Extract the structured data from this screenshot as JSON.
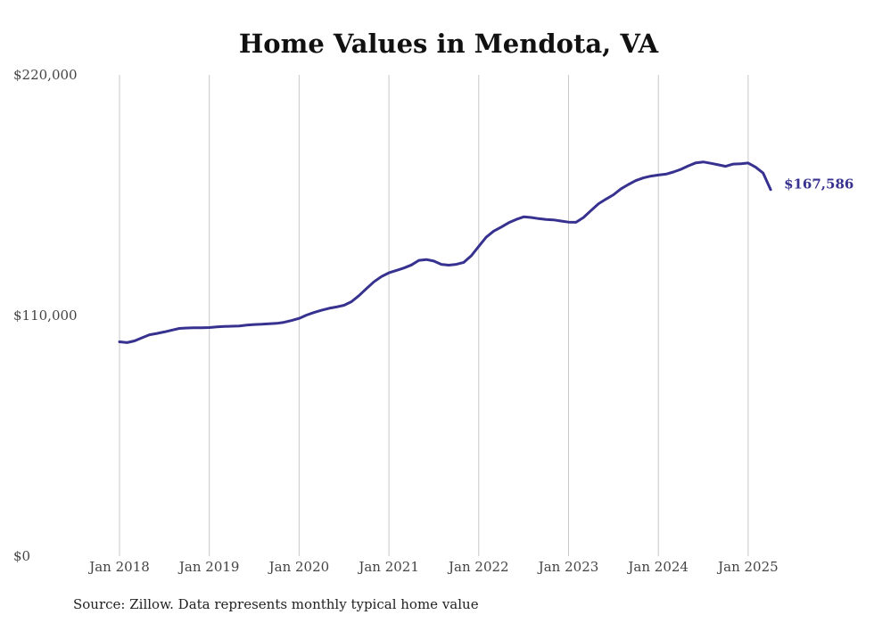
{
  "chart_data": {
    "type": "line",
    "title": "Home Values in Mendota, VA",
    "xlabel": "",
    "ylabel": "",
    "source_note": "Source: Zillow. Data represents monthly typical home value",
    "ylim": [
      0,
      220000
    ],
    "y_ticks": [
      "$220,000",
      "$110,000",
      "$0"
    ],
    "y_tick_values": [
      220000,
      110000,
      0
    ],
    "x_ticks": [
      "Jan 2018",
      "Jan 2019",
      "Jan 2020",
      "Jan 2021",
      "Jan 2022",
      "Jan 2023",
      "Jan 2024",
      "Jan 2025"
    ],
    "x_tick_values": [
      "2018-01",
      "2019-01",
      "2020-01",
      "2021-01",
      "2022-01",
      "2023-01",
      "2024-01",
      "2025-01"
    ],
    "grid": "vertical",
    "line_color": "#37318f",
    "end_label": "$167,586",
    "series": [
      {
        "x": [
          "2018-01",
          "2018-02",
          "2018-03",
          "2018-04",
          "2018-05",
          "2018-06",
          "2018-07",
          "2018-08",
          "2018-09",
          "2018-10",
          "2018-11",
          "2018-12",
          "2019-01",
          "2019-02",
          "2019-03",
          "2019-04",
          "2019-05",
          "2019-06",
          "2019-07",
          "2019-08",
          "2019-09",
          "2019-10",
          "2019-11",
          "2019-12",
          "2020-01",
          "2020-02",
          "2020-03",
          "2020-04",
          "2020-05",
          "2020-06",
          "2020-07",
          "2020-08",
          "2020-09",
          "2020-10",
          "2020-11",
          "2020-12",
          "2021-01",
          "2021-02",
          "2021-03",
          "2021-04",
          "2021-05",
          "2021-06",
          "2021-07",
          "2021-08",
          "2021-09",
          "2021-10",
          "2021-11",
          "2021-12",
          "2022-01",
          "2022-02",
          "2022-03",
          "2022-04",
          "2022-05",
          "2022-06",
          "2022-07",
          "2022-08",
          "2022-09",
          "2022-10",
          "2022-11",
          "2022-12",
          "2023-01",
          "2023-02",
          "2023-03",
          "2023-04",
          "2023-05",
          "2023-06",
          "2023-07",
          "2023-08",
          "2023-09",
          "2023-10",
          "2023-11",
          "2023-12",
          "2024-01",
          "2024-02",
          "2024-03",
          "2024-04",
          "2024-05",
          "2024-06",
          "2024-07",
          "2024-08",
          "2024-09",
          "2024-10",
          "2024-11",
          "2024-12",
          "2025-01",
          "2025-02",
          "2025-03",
          "2025-04"
        ],
        "values": [
          98000,
          97600,
          98400,
          99800,
          101200,
          101800,
          102500,
          103300,
          104100,
          104300,
          104400,
          104400,
          104500,
          104800,
          105000,
          105100,
          105200,
          105600,
          105900,
          106000,
          106200,
          106400,
          106900,
          107700,
          108700,
          110200,
          111400,
          112400,
          113300,
          113900,
          114700,
          116300,
          119100,
          122300,
          125400,
          127800,
          129500,
          130600,
          131700,
          133100,
          135200,
          135600,
          134900,
          133400,
          133000,
          133400,
          134300,
          137300,
          141600,
          145800,
          148600,
          150400,
          152400,
          153900,
          155100,
          154800,
          154300,
          153900,
          153700,
          153200,
          152700,
          152600,
          154800,
          158000,
          161100,
          163200,
          165200,
          167900,
          169900,
          171700,
          172900,
          173700,
          174200,
          174600,
          175600,
          176800,
          178400,
          179800,
          180200,
          179600,
          178900,
          178200,
          179200,
          179400,
          179700,
          177800,
          175100,
          167586
        ]
      }
    ]
  }
}
